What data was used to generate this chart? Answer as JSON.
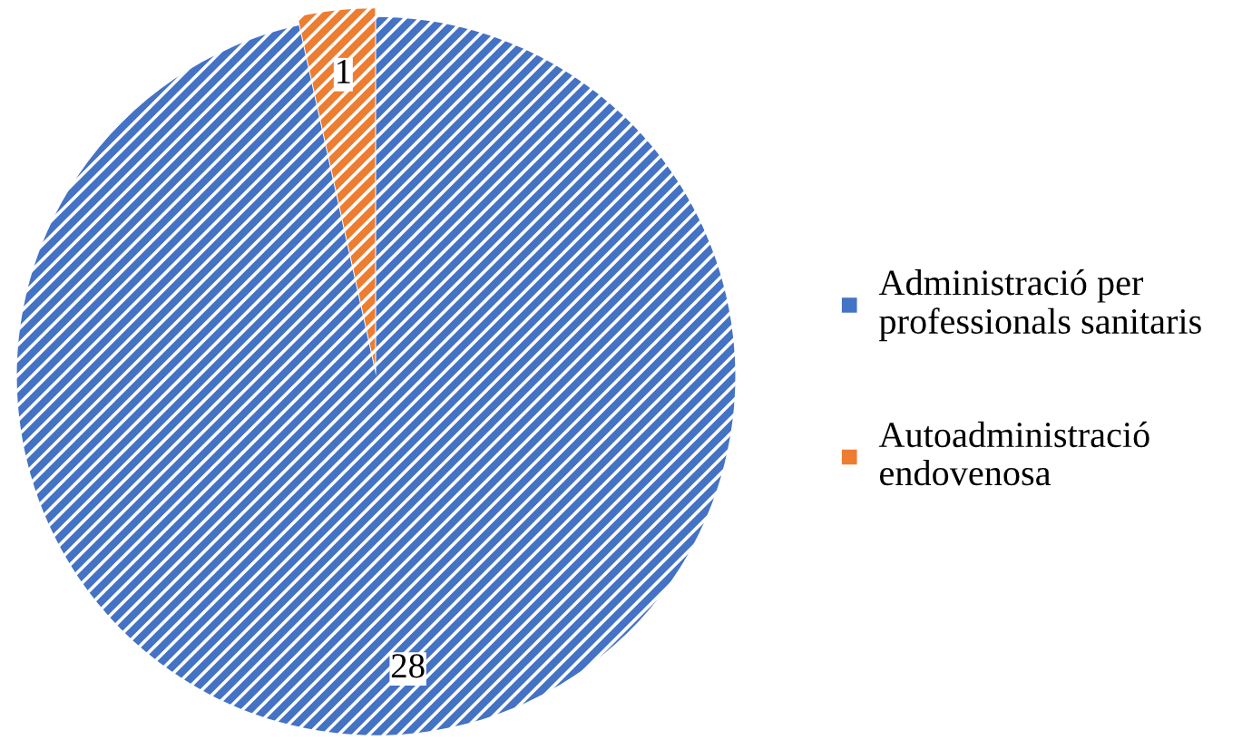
{
  "chart_data": {
    "type": "pie",
    "categories": [
      "Administració per professionals sanitaris",
      "Autoadministració endovenosa"
    ],
    "values": [
      28,
      1
    ],
    "colors": [
      "#4472c4",
      "#ed7d31"
    ],
    "data_labels": true,
    "legend": "right"
  }
}
